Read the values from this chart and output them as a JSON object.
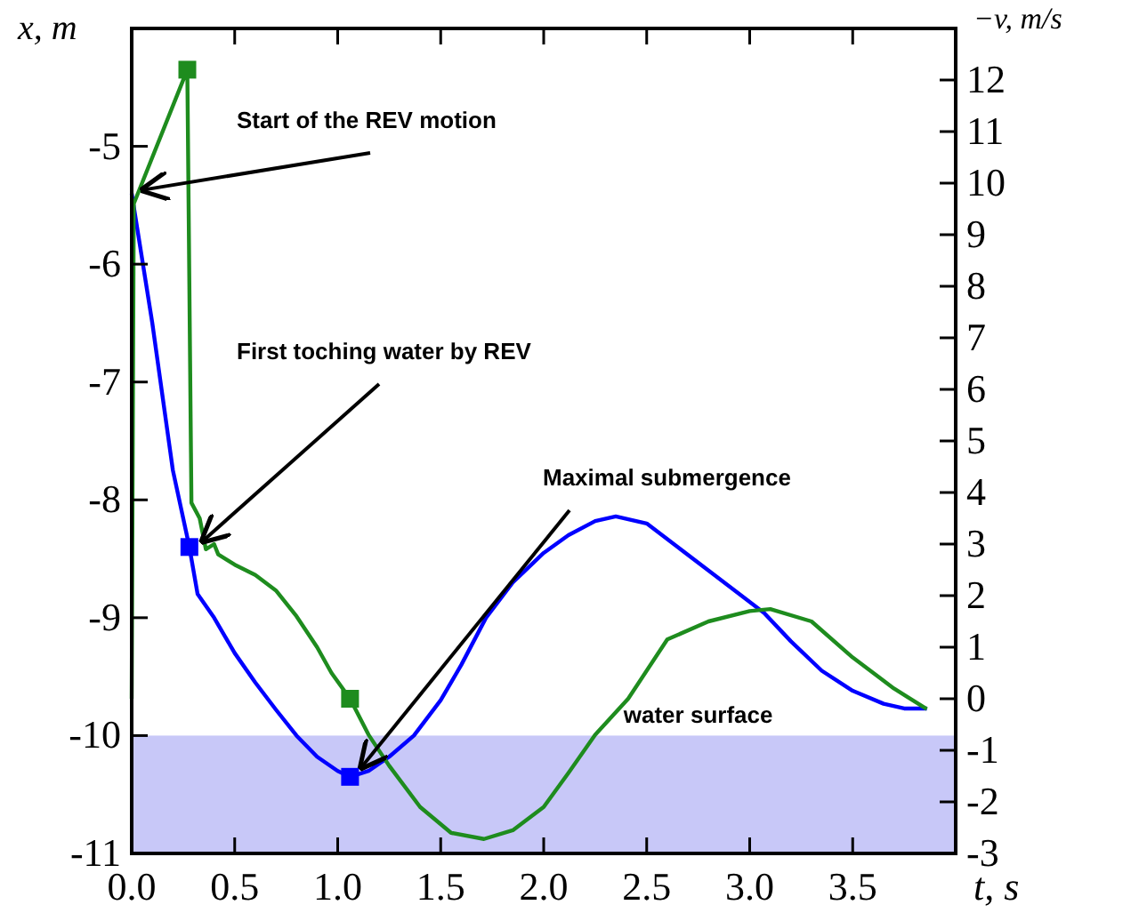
{
  "chart_data": {
    "type": "line",
    "xlabel": "t, s",
    "ylabel": "x, m",
    "y2label": "−v, m/s",
    "xlim": [
      0,
      4
    ],
    "xticks": [
      {
        "value": 0,
        "label": "0.0"
      },
      {
        "value": 0.5,
        "label": "0.5"
      },
      {
        "value": 1,
        "label": "1.0"
      },
      {
        "value": 1.5,
        "label": "1.5"
      },
      {
        "value": 2,
        "label": "2.0"
      },
      {
        "value": 2.5,
        "label": "2.5"
      },
      {
        "value": 3,
        "label": "3.0"
      },
      {
        "value": 3.5,
        "label": "3.5"
      }
    ],
    "ylim": [
      -11,
      -4
    ],
    "yticks": [
      -11,
      -10,
      -9,
      -8,
      -7,
      -6,
      -5
    ],
    "y2lim": [
      -3,
      13
    ],
    "y2ticks": [
      -3,
      -2,
      -1,
      0,
      1,
      2,
      3,
      4,
      5,
      6,
      7,
      8,
      9,
      10,
      11,
      12
    ],
    "grid": false,
    "series": [
      {
        "color": "#0000ff",
        "x": [
          0,
          0.1,
          0.2,
          0.28,
          0.32,
          0.4,
          0.5,
          0.6,
          0.7,
          0.8,
          0.9,
          1.0,
          1.06,
          1.15,
          1.25,
          1.37,
          1.5,
          1.6,
          1.72,
          1.85,
          2.0,
          2.12,
          2.25,
          2.35,
          2.5,
          2.65,
          2.8,
          2.95,
          3.07,
          3.2,
          3.35,
          3.5,
          3.65,
          3.75,
          3.86
        ],
        "values": [
          -5.4,
          -6.5,
          -7.75,
          -8.4,
          -8.8,
          -9.0,
          -9.3,
          -9.55,
          -9.78,
          -10.0,
          -10.18,
          -10.3,
          -10.35,
          -10.3,
          -10.18,
          -10.0,
          -9.7,
          -9.4,
          -9.0,
          -8.7,
          -8.45,
          -8.3,
          -8.18,
          -8.14,
          -8.2,
          -8.4,
          -8.6,
          -8.8,
          -8.96,
          -9.2,
          -9.45,
          -9.62,
          -9.73,
          -9.77,
          -9.77
        ]
      },
      {
        "axis": "y2",
        "color": "#1e8c1e",
        "x": [
          0,
          0.01,
          0.27,
          0.29,
          0.33,
          0.36,
          0.4,
          0.42,
          0.5,
          0.6,
          0.7,
          0.8,
          0.9,
          0.97,
          1.06,
          1.15,
          1.25,
          1.4,
          1.55,
          1.71,
          1.85,
          2.0,
          2.12,
          2.25,
          2.41,
          2.6,
          2.8,
          3.0,
          3.1,
          3.3,
          3.5,
          3.7,
          3.86
        ],
        "values": [
          0,
          9.6,
          12.2,
          3.8,
          3.5,
          2.9,
          3.0,
          2.8,
          2.6,
          2.4,
          2.1,
          1.6,
          1.0,
          0.5,
          0.0,
          -0.7,
          -1.3,
          -2.1,
          -2.6,
          -2.72,
          -2.55,
          -2.1,
          -1.44,
          -0.7,
          0.0,
          1.15,
          1.5,
          1.7,
          1.74,
          1.5,
          0.8,
          0.2,
          -0.2
        ]
      },
      {
        "type": "scatter",
        "marker": "square",
        "color": "#0000ff",
        "x": [
          0.28,
          1.06
        ],
        "values": [
          -8.4,
          -10.35
        ]
      },
      {
        "type": "scatter",
        "marker": "square",
        "axis": "y2",
        "color": "#1e8c1e",
        "x": [
          0.27,
          1.06
        ],
        "values": [
          12.2,
          0.0
        ]
      }
    ],
    "bands": [
      {
        "axis": "y",
        "from": -11,
        "to": -10,
        "label": "water surface",
        "color": "#c8c8f8"
      }
    ],
    "annotations": [
      {
        "text": "Start of the REV motion",
        "x": 0.02,
        "y": -5.4
      },
      {
        "text": "First toching water by REV",
        "x": 0.31,
        "y": -8.38
      },
      {
        "text": "Maximal submergence",
        "x": 1.08,
        "y": -10.3
      }
    ]
  }
}
